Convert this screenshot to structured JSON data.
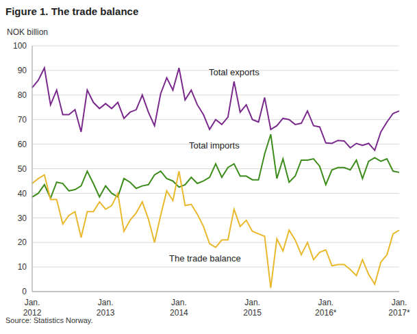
{
  "chart_data": {
    "type": "line",
    "title": "Figure 1. The trade balance",
    "y_label": "NOK billion",
    "source": "Source: Statistics Norway.",
    "categories": [
      "Jan. 2012",
      null,
      null,
      null,
      null,
      null,
      null,
      null,
      null,
      null,
      null,
      null,
      "Jan. 2013",
      null,
      null,
      null,
      null,
      null,
      null,
      null,
      null,
      null,
      null,
      null,
      "Jan. 2014",
      null,
      null,
      null,
      null,
      null,
      null,
      null,
      null,
      null,
      null,
      null,
      "Jan. 2015",
      null,
      null,
      null,
      null,
      null,
      null,
      null,
      null,
      null,
      null,
      null,
      "Jan. 2016*",
      null,
      null,
      null,
      null,
      null,
      null,
      null,
      null,
      null,
      null,
      null,
      "Jan. 2017*"
    ],
    "series": [
      {
        "name": "Total exports",
        "color": "#7a2a8c",
        "values": [
          83,
          86,
          91,
          76,
          82,
          72,
          72,
          74,
          65,
          82,
          77,
          74.5,
          76.5,
          74.5,
          77,
          70.5,
          73,
          74,
          80,
          73,
          67.5,
          80.5,
          87,
          82,
          91,
          78,
          82,
          76,
          72,
          66,
          70,
          68,
          71,
          85.5,
          73,
          76,
          70,
          69,
          79,
          66,
          67.5,
          70.5,
          70,
          68,
          68.5,
          73.5,
          67.5,
          67,
          60.5,
          60.3,
          61.5,
          61.3,
          58.5,
          60.3,
          59.5,
          60.3,
          57.5,
          65,
          69,
          72.5,
          73.5
        ]
      },
      {
        "name": "Total imports",
        "color": "#3d8c1c",
        "values": [
          38.5,
          40,
          43.5,
          38,
          44.5,
          44,
          41,
          41.5,
          43,
          49,
          44,
          38.5,
          43,
          40,
          38.5,
          46,
          44.5,
          42,
          43,
          43.5,
          47.5,
          49,
          46,
          45,
          42.5,
          43.5,
          46.5,
          44,
          45,
          46.5,
          52,
          46.5,
          50.5,
          52,
          47,
          47,
          45.5,
          45.5,
          56,
          64,
          46,
          54,
          44.5,
          47,
          53.5,
          53.5,
          54,
          51,
          43.5,
          49.5,
          50.5,
          50.5,
          49.5,
          53.5,
          46,
          53,
          54.5,
          53,
          54,
          49,
          48.5
        ]
      },
      {
        "name": "The trade balance",
        "color": "#e9b82c",
        "values": [
          44,
          46,
          47.5,
          37.5,
          37.5,
          27.5,
          31,
          32.5,
          22,
          32.5,
          32.5,
          36.5,
          33.5,
          35,
          40,
          24.5,
          29,
          32,
          36.5,
          29.5,
          20,
          31,
          41,
          37,
          49,
          35,
          35.5,
          31.5,
          26.5,
          19.5,
          18,
          21,
          21,
          33.5,
          26.5,
          29,
          24.5,
          23.5,
          22.5,
          1.5,
          21.5,
          16.5,
          25,
          21,
          15,
          20,
          13,
          16,
          17,
          10.5,
          11,
          11,
          9,
          6.5,
          13,
          7,
          3,
          12,
          15,
          23.5,
          25
        ]
      }
    ],
    "ylim": [
      0,
      100
    ],
    "yticks": [
      0,
      10,
      20,
      30,
      40,
      50,
      60,
      70,
      80,
      90,
      100
    ],
    "grid": true
  }
}
